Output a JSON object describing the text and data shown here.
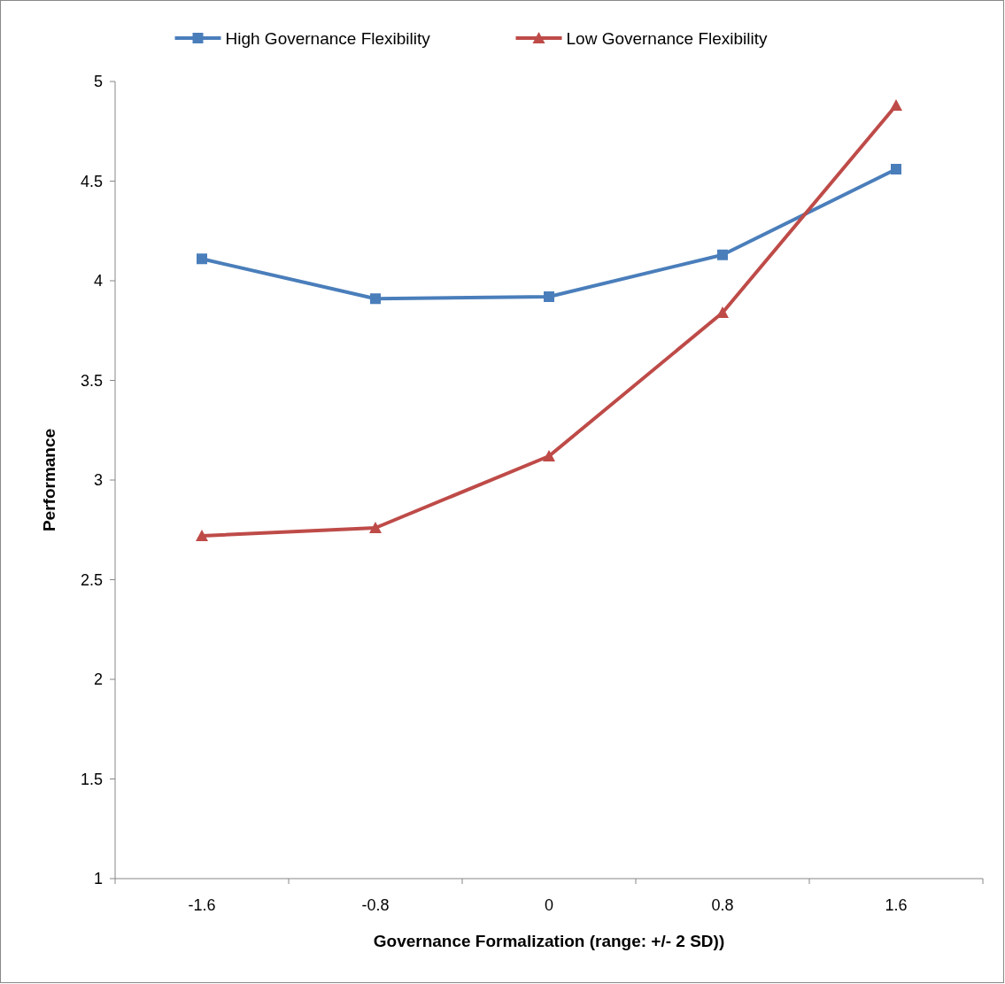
{
  "chart_data": {
    "type": "line",
    "xlabel": "Governance Formalization (range: +/- 2 SD))",
    "ylabel": "Performance",
    "categories": [
      "-1.6",
      "-0.8",
      "0",
      "0.8",
      "1.6"
    ],
    "ylim": [
      1,
      5
    ],
    "yticks": [
      1,
      1.5,
      2,
      2.5,
      3,
      3.5,
      4,
      4.5,
      5
    ],
    "legend": "top",
    "grid": false,
    "series": [
      {
        "name": "High Governance Flexibility",
        "color": "#4a7ebb",
        "marker": "square",
        "values": [
          4.11,
          3.91,
          3.92,
          4.13,
          4.56
        ]
      },
      {
        "name": "Low Governance Flexibility",
        "color": "#be4b48",
        "marker": "triangle",
        "values": [
          2.72,
          2.76,
          3.12,
          3.84,
          4.88
        ]
      }
    ]
  }
}
